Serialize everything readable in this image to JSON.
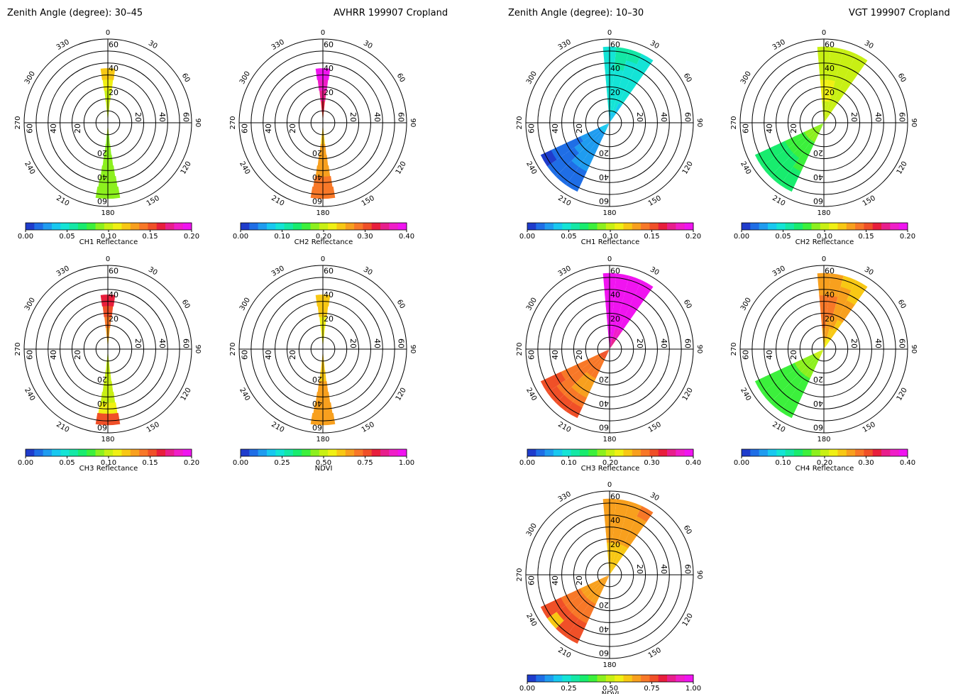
{
  "headers": {
    "left_zenith": "Zenith Angle (degree): 30–45",
    "left_title": "AVHRR 199907 Cropland",
    "right_zenith": "Zenith Angle (degree): 10–30",
    "right_title": "VGT 199907 Cropland"
  },
  "colors": [
    "#1f3ccc",
    "#1f6ee6",
    "#1f9cf0",
    "#18c8f0",
    "#14e4d6",
    "#14e8a6",
    "#18ec6e",
    "#3cf03c",
    "#8cf01e",
    "#c8f014",
    "#f0f014",
    "#f8c814",
    "#f8a01e",
    "#f87828",
    "#f05028",
    "#e81e3c",
    "#e81e8c",
    "#f01ec8",
    "#f014f0"
  ],
  "chart_data": [
    {
      "type": "heatmap",
      "sensor": "AVHRR",
      "panel": "ch1",
      "colorbar_label": "CH1 Reflectance",
      "colorbar_ticks": [
        "0.00",
        "0.05",
        "0.10",
        "0.15",
        "0.20"
      ],
      "vmin": 0.0,
      "vmax": 0.2,
      "angle_labels": [
        "0",
        "30",
        "60",
        "90",
        "120",
        "150",
        "180",
        "210",
        "240",
        "270",
        "300",
        "330"
      ],
      "ring_labels": [
        "20",
        "40",
        "60"
      ],
      "vza_max": 70,
      "sectors": [
        {
          "az": 0,
          "values": [
            0.095,
            0.1,
            0.105,
            0.11,
            0.125
          ]
        },
        {
          "az": 180,
          "values": [
            0.095,
            0.09,
            0.085,
            0.085,
            0.085,
            0.088,
            0.09
          ]
        }
      ]
    },
    {
      "type": "heatmap",
      "sensor": "AVHRR",
      "panel": "ch2",
      "colorbar_label": "CH2 Reflectance",
      "colorbar_ticks": [
        "0.00",
        "0.10",
        "0.20",
        "0.30",
        "0.40"
      ],
      "vmin": 0.0,
      "vmax": 0.4,
      "angle_labels": [
        "0",
        "30",
        "60",
        "90",
        "120",
        "150",
        "180",
        "210",
        "240",
        "270",
        "300",
        "330"
      ],
      "ring_labels": [
        "20",
        "40",
        "60"
      ],
      "vza_max": 70,
      "sectors": [
        {
          "az": 0,
          "values": [
            0.3,
            0.32,
            0.34,
            0.36,
            0.38
          ]
        },
        {
          "az": 180,
          "values": [
            0.24,
            0.25,
            0.26,
            0.27,
            0.27,
            0.28,
            0.28
          ]
        }
      ]
    },
    {
      "type": "heatmap",
      "sensor": "AVHRR",
      "panel": "ch3",
      "colorbar_label": "CH3 Reflectance",
      "colorbar_ticks": [
        "0.00",
        "0.05",
        "0.10",
        "0.15",
        "0.20"
      ],
      "vmin": 0.0,
      "vmax": 0.2,
      "angle_labels": [
        "0",
        "30",
        "60",
        "90",
        "120",
        "150",
        "180",
        "210",
        "240",
        "270",
        "300",
        "330"
      ],
      "ring_labels": [
        "20",
        "40",
        "60"
      ],
      "vza_max": 70,
      "sectors": [
        {
          "az": 0,
          "values": [
            0.12,
            0.13,
            0.14,
            0.15,
            0.16
          ]
        },
        {
          "az": 180,
          "values": [
            0.1,
            0.1,
            0.1,
            0.1,
            0.105,
            0.11,
            0.15
          ]
        }
      ]
    },
    {
      "type": "heatmap",
      "sensor": "AVHRR",
      "panel": "ndvi",
      "colorbar_label": "NDVI",
      "colorbar_ticks": [
        "0.00",
        "0.25",
        "0.50",
        "0.75",
        "1.00"
      ],
      "vmin": 0.0,
      "vmax": 1.0,
      "angle_labels": [
        "0",
        "30",
        "60",
        "90",
        "120",
        "150",
        "180",
        "210",
        "240",
        "270",
        "300",
        "330"
      ],
      "ring_labels": [
        "20",
        "40",
        "60"
      ],
      "vza_max": 70,
      "sectors": [
        {
          "az": 0,
          "values": [
            0.55,
            0.56,
            0.57,
            0.58,
            0.6
          ]
        },
        {
          "az": 180,
          "values": [
            0.58,
            0.6,
            0.62,
            0.64,
            0.66,
            0.68,
            0.68
          ]
        }
      ]
    },
    {
      "type": "heatmap",
      "sensor": "VGT",
      "panel": "ch1",
      "colorbar_label": "CH1 Reflectance",
      "colorbar_ticks": [
        "0.00",
        "0.05",
        "0.10",
        "0.15",
        "0.20"
      ],
      "vmin": 0.0,
      "vmax": 0.2,
      "angle_labels": [
        "0",
        "30",
        "60",
        "90",
        "120",
        "150",
        "180",
        "210",
        "240",
        "270",
        "300",
        "330"
      ],
      "ring_labels": [
        "20",
        "40",
        "60"
      ],
      "vza_max": 70,
      "sectors": [
        {
          "az": 0,
          "values": [
            0.04,
            0.045,
            0.05,
            0.05,
            0.05,
            0.05,
            0.05
          ]
        },
        {
          "az": 10,
          "values": [
            0.04,
            0.045,
            0.05,
            0.05,
            0.05,
            0.055,
            0.055
          ]
        },
        {
          "az": 20,
          "values": [
            0.04,
            0.045,
            0.05,
            0.05,
            0.05,
            0.05,
            0.055
          ]
        },
        {
          "az": 30,
          "values": [
            0.04,
            0.04,
            0.045,
            0.05,
            0.05,
            0.05,
            0.05
          ]
        },
        {
          "az": 210,
          "values": [
            0.035,
            0.03,
            0.028,
            0.025,
            0.022,
            0.02,
            0.02
          ]
        },
        {
          "az": 220,
          "values": [
            0.035,
            0.03,
            0.028,
            0.025,
            0.022,
            0.02,
            0.018
          ]
        },
        {
          "az": 230,
          "values": [
            0.035,
            0.03,
            0.025,
            0.022,
            0.018,
            0.015,
            0.015
          ]
        },
        {
          "az": 240,
          "values": [
            0.035,
            0.03,
            0.025,
            0.02,
            0.018,
            0.015,
            0.01
          ]
        }
      ]
    },
    {
      "type": "heatmap",
      "sensor": "VGT",
      "panel": "ch2",
      "colorbar_label": "CH2 Reflectance",
      "colorbar_ticks": [
        "0.00",
        "0.05",
        "0.10",
        "0.15",
        "0.20"
      ],
      "vmin": 0.0,
      "vmax": 0.2,
      "angle_labels": [
        "0",
        "30",
        "60",
        "90",
        "120",
        "150",
        "180",
        "210",
        "240",
        "270",
        "300",
        "330"
      ],
      "ring_labels": [
        "20",
        "40",
        "60"
      ],
      "vza_max": 70,
      "sectors": [
        {
          "az": 0,
          "values": [
            0.1,
            0.105,
            0.11,
            0.11,
            0.105,
            0.1,
            0.1
          ]
        },
        {
          "az": 10,
          "values": [
            0.1,
            0.105,
            0.11,
            0.11,
            0.105,
            0.1,
            0.1
          ]
        },
        {
          "az": 20,
          "values": [
            0.1,
            0.105,
            0.105,
            0.1,
            0.1,
            0.1,
            0.1
          ]
        },
        {
          "az": 30,
          "values": [
            0.1,
            0.1,
            0.1,
            0.1,
            0.1,
            0.1,
            0.1
          ]
        },
        {
          "az": 210,
          "values": [
            0.09,
            0.085,
            0.08,
            0.075,
            0.075,
            0.07,
            0.07
          ]
        },
        {
          "az": 220,
          "values": [
            0.09,
            0.085,
            0.08,
            0.075,
            0.07,
            0.07,
            0.07
          ]
        },
        {
          "az": 230,
          "values": [
            0.09,
            0.085,
            0.08,
            0.075,
            0.07,
            0.07,
            0.07
          ]
        },
        {
          "az": 240,
          "values": [
            0.09,
            0.085,
            0.08,
            0.075,
            0.07,
            0.07,
            0.07
          ]
        }
      ]
    },
    {
      "type": "heatmap",
      "sensor": "VGT",
      "panel": "ch3",
      "colorbar_label": "CH3 Reflectance",
      "colorbar_ticks": [
        "0.00",
        "0.10",
        "0.20",
        "0.30",
        "0.40"
      ],
      "vmin": 0.0,
      "vmax": 0.4,
      "angle_labels": [
        "0",
        "30",
        "60",
        "90",
        "120",
        "150",
        "180",
        "210",
        "240",
        "270",
        "300",
        "330"
      ],
      "ring_labels": [
        "20",
        "40",
        "60"
      ],
      "vza_max": 70,
      "sectors": [
        {
          "az": 0,
          "values": [
            0.36,
            0.38,
            0.39,
            0.4,
            0.4,
            0.4,
            0.4
          ]
        },
        {
          "az": 10,
          "values": [
            0.36,
            0.38,
            0.39,
            0.4,
            0.4,
            0.4,
            0.4
          ]
        },
        {
          "az": 20,
          "values": [
            0.35,
            0.37,
            0.38,
            0.39,
            0.4,
            0.4,
            0.4
          ]
        },
        {
          "az": 30,
          "values": [
            0.34,
            0.36,
            0.38,
            0.39,
            0.39,
            0.4,
            0.4
          ]
        },
        {
          "az": 210,
          "values": [
            0.3,
            0.29,
            0.28,
            0.27,
            0.27,
            0.28,
            0.3
          ]
        },
        {
          "az": 220,
          "values": [
            0.3,
            0.29,
            0.28,
            0.27,
            0.27,
            0.28,
            0.3
          ]
        },
        {
          "az": 230,
          "values": [
            0.3,
            0.29,
            0.28,
            0.28,
            0.28,
            0.29,
            0.3
          ]
        },
        {
          "az": 240,
          "values": [
            0.3,
            0.29,
            0.28,
            0.28,
            0.29,
            0.3,
            0.3
          ]
        }
      ]
    },
    {
      "type": "heatmap",
      "sensor": "VGT",
      "panel": "ch4",
      "colorbar_label": "CH4 Reflectance",
      "colorbar_ticks": [
        "0.00",
        "0.10",
        "0.20",
        "0.30",
        "0.40"
      ],
      "vmin": 0.0,
      "vmax": 0.4,
      "angle_labels": [
        "0",
        "30",
        "60",
        "90",
        "120",
        "150",
        "180",
        "210",
        "240",
        "270",
        "300",
        "330"
      ],
      "ring_labels": [
        "20",
        "40",
        "60"
      ],
      "vza_max": 70,
      "sectors": [
        {
          "az": 0,
          "values": [
            0.24,
            0.26,
            0.28,
            0.29,
            0.28,
            0.27,
            0.26
          ]
        },
        {
          "az": 10,
          "values": [
            0.24,
            0.26,
            0.27,
            0.28,
            0.28,
            0.27,
            0.26
          ]
        },
        {
          "az": 20,
          "values": [
            0.23,
            0.25,
            0.26,
            0.27,
            0.27,
            0.26,
            0.25
          ]
        },
        {
          "az": 30,
          "values": [
            0.23,
            0.24,
            0.25,
            0.26,
            0.26,
            0.25,
            0.25
          ]
        },
        {
          "az": 210,
          "values": [
            0.2,
            0.18,
            0.17,
            0.16,
            0.16,
            0.15,
            0.15
          ]
        },
        {
          "az": 220,
          "values": [
            0.2,
            0.18,
            0.17,
            0.16,
            0.16,
            0.16,
            0.16
          ]
        },
        {
          "az": 230,
          "values": [
            0.2,
            0.18,
            0.17,
            0.16,
            0.16,
            0.16,
            0.16
          ]
        },
        {
          "az": 240,
          "values": [
            0.2,
            0.18,
            0.17,
            0.16,
            0.16,
            0.16,
            0.16
          ]
        }
      ]
    },
    {
      "type": "heatmap",
      "sensor": "VGT",
      "panel": "ndvi",
      "colorbar_label": "NDVI",
      "colorbar_ticks": [
        "0.00",
        "0.25",
        "0.50",
        "0.75",
        "1.00"
      ],
      "vmin": 0.0,
      "vmax": 1.0,
      "angle_labels": [
        "0",
        "30",
        "60",
        "90",
        "120",
        "150",
        "180",
        "210",
        "240",
        "270",
        "300",
        "330"
      ],
      "ring_labels": [
        "20",
        "40",
        "60"
      ],
      "vza_max": 70,
      "sectors": [
        {
          "az": 0,
          "values": [
            0.58,
            0.6,
            0.62,
            0.64,
            0.66,
            0.66,
            0.66
          ]
        },
        {
          "az": 10,
          "values": [
            0.58,
            0.6,
            0.62,
            0.64,
            0.66,
            0.68,
            0.66
          ]
        },
        {
          "az": 20,
          "values": [
            0.58,
            0.6,
            0.62,
            0.64,
            0.66,
            0.68,
            0.68
          ]
        },
        {
          "az": 30,
          "values": [
            0.58,
            0.6,
            0.62,
            0.64,
            0.66,
            0.68,
            0.7
          ]
        },
        {
          "az": 210,
          "values": [
            0.64,
            0.66,
            0.68,
            0.7,
            0.72,
            0.74,
            0.74
          ]
        },
        {
          "az": 220,
          "values": [
            0.64,
            0.66,
            0.68,
            0.7,
            0.72,
            0.74,
            0.75
          ]
        },
        {
          "az": 230,
          "values": [
            0.64,
            0.66,
            0.68,
            0.7,
            0.72,
            0.74,
            0.6
          ]
        },
        {
          "az": 240,
          "values": [
            0.64,
            0.66,
            0.68,
            0.7,
            0.72,
            0.74,
            0.75
          ]
        }
      ]
    }
  ]
}
